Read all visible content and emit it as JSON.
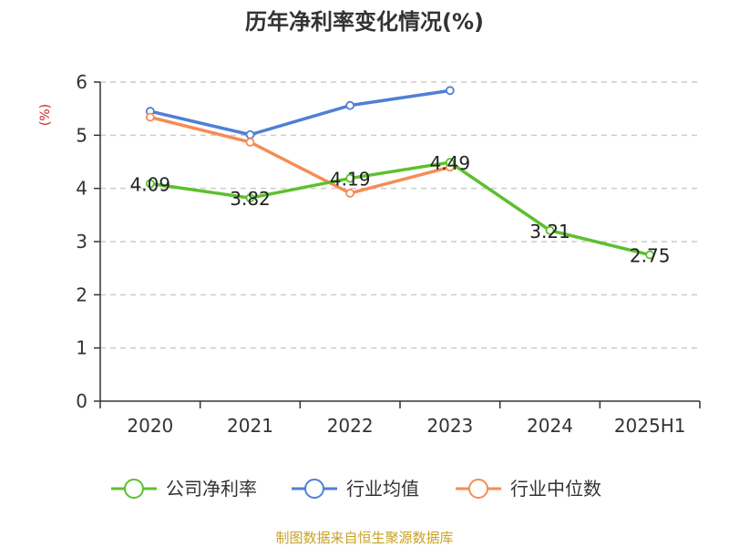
{
  "chart_data": {
    "type": "line",
    "title": "历年净利率变化情况(%)",
    "ylabel": "(%)",
    "xlabel": "",
    "categories": [
      "2020",
      "2021",
      "2022",
      "2023",
      "2024",
      "2025H1"
    ],
    "ylim": [
      0,
      6
    ],
    "yticks": [
      0,
      1,
      2,
      3,
      4,
      5,
      6
    ],
    "grid": true,
    "legend_position": "bottom",
    "series": [
      {
        "name": "公司净利率",
        "color": "#5cc02e",
        "values": [
          4.09,
          3.82,
          4.19,
          4.49,
          3.21,
          2.75
        ],
        "labels": [
          "4.09",
          "3.82",
          "4.19",
          "4.49",
          "3.21",
          "2.75"
        ]
      },
      {
        "name": "行业均值",
        "color": "#4f7fd6",
        "values": [
          5.45,
          5.01,
          5.56,
          5.84,
          null,
          null
        ]
      },
      {
        "name": "行业中位数",
        "color": "#f78b55",
        "values": [
          5.34,
          4.87,
          3.91,
          4.4,
          null,
          null
        ]
      }
    ]
  },
  "source": "制图数据来自恒生聚源数据库",
  "colors": {
    "source_text": "#c9a227",
    "ylabel": "#cc2222",
    "grid": "#cccccc",
    "axis": "#333333"
  }
}
